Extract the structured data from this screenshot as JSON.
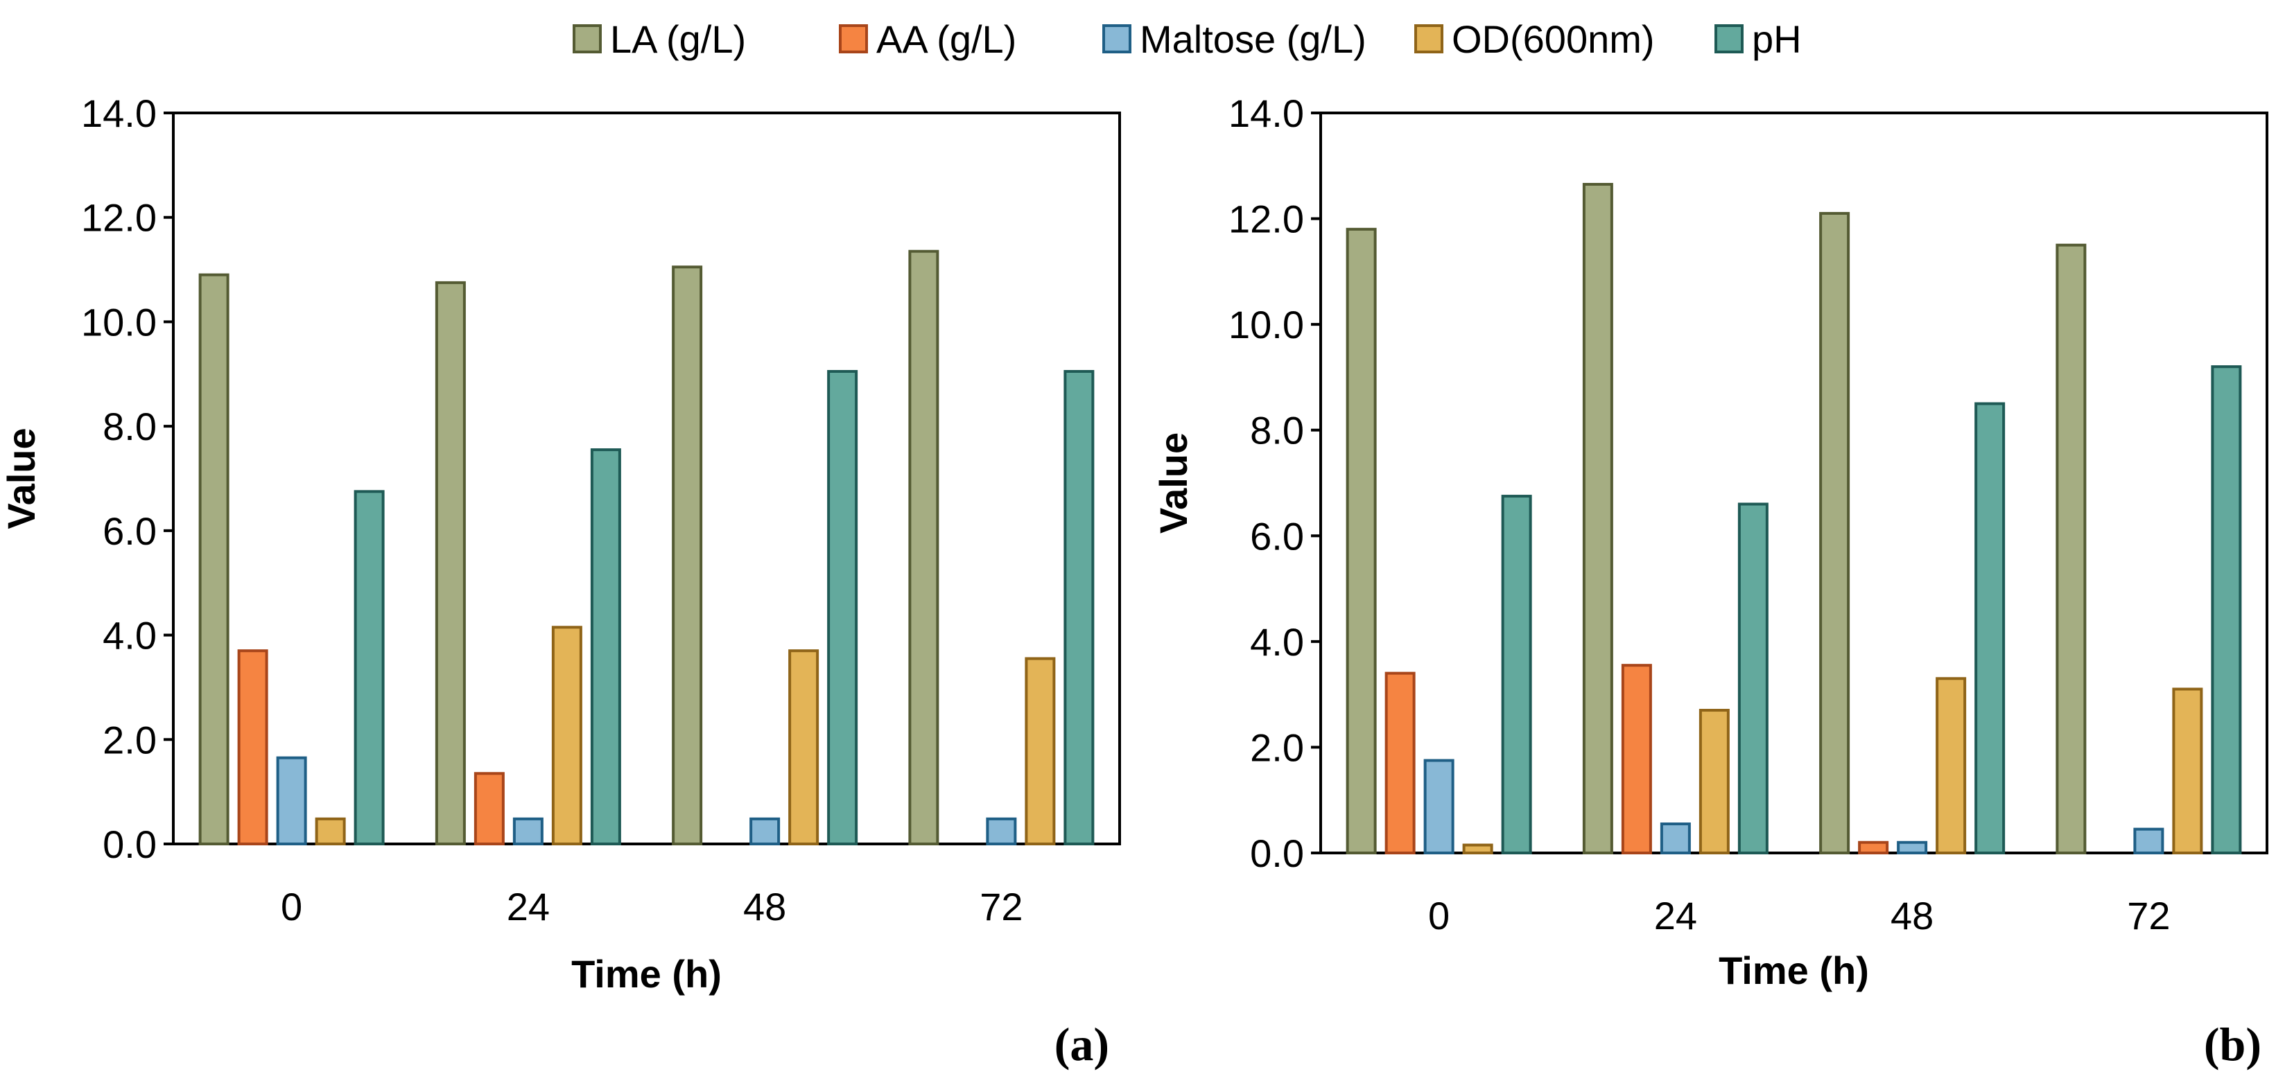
{
  "legend": [
    {
      "label": "LA (g/L)",
      "fill": "#a5ad82",
      "stroke": "#545b33"
    },
    {
      "label": "AA (g/L)",
      "fill": "#f58442",
      "stroke": "#a8451a"
    },
    {
      "label": "Maltose (g/L)",
      "fill": "#88b8d6",
      "stroke": "#1f5f86"
    },
    {
      "label": "OD(600nm)",
      "fill": "#e3b457",
      "stroke": "#8f6418"
    },
    {
      "label": "pH",
      "fill": "#63a99d",
      "stroke": "#1e5a55"
    }
  ],
  "chart_data": [
    {
      "type": "bar",
      "panel_label": "(a)",
      "categories": [
        "0",
        "24",
        "48",
        "72"
      ],
      "xlabel": "Time (h)",
      "ylabel": "Value",
      "ylim": [
        0,
        14
      ],
      "ytick_step": 2,
      "yticks": [
        "0.0",
        "2.0",
        "4.0",
        "6.0",
        "8.0",
        "10.0",
        "12.0",
        "14.0"
      ],
      "series": [
        {
          "name": "LA (g/L)",
          "values": [
            10.9,
            10.75,
            11.05,
            11.35
          ]
        },
        {
          "name": "AA (g/L)",
          "values": [
            3.7,
            1.35,
            null,
            null
          ]
        },
        {
          "name": "Maltose (g/L)",
          "values": [
            1.65,
            0.48,
            0.48,
            0.48
          ]
        },
        {
          "name": "OD(600nm)",
          "values": [
            0.48,
            4.15,
            3.7,
            3.55
          ]
        },
        {
          "name": "pH",
          "values": [
            6.75,
            7.55,
            9.05,
            9.05
          ]
        }
      ]
    },
    {
      "type": "bar",
      "panel_label": "(b)",
      "categories": [
        "0",
        "24",
        "48",
        "72"
      ],
      "xlabel": "Time (h)",
      "ylabel": "Value",
      "ylim": [
        0,
        14
      ],
      "ytick_step": 2,
      "yticks": [
        "0.0",
        "2.0",
        "4.0",
        "6.0",
        "8.0",
        "10.0",
        "12.0",
        "14.0"
      ],
      "series": [
        {
          "name": "LA (g/L)",
          "values": [
            11.8,
            12.65,
            12.1,
            11.5
          ]
        },
        {
          "name": "AA (g/L)",
          "values": [
            3.4,
            3.55,
            0.2,
            null
          ]
        },
        {
          "name": "Maltose (g/L)",
          "values": [
            1.75,
            0.55,
            0.2,
            0.45
          ]
        },
        {
          "name": "OD(600nm)",
          "values": [
            0.15,
            2.7,
            3.3,
            3.1
          ]
        },
        {
          "name": "pH",
          "values": [
            6.75,
            6.6,
            8.5,
            9.2
          ]
        }
      ]
    }
  ]
}
